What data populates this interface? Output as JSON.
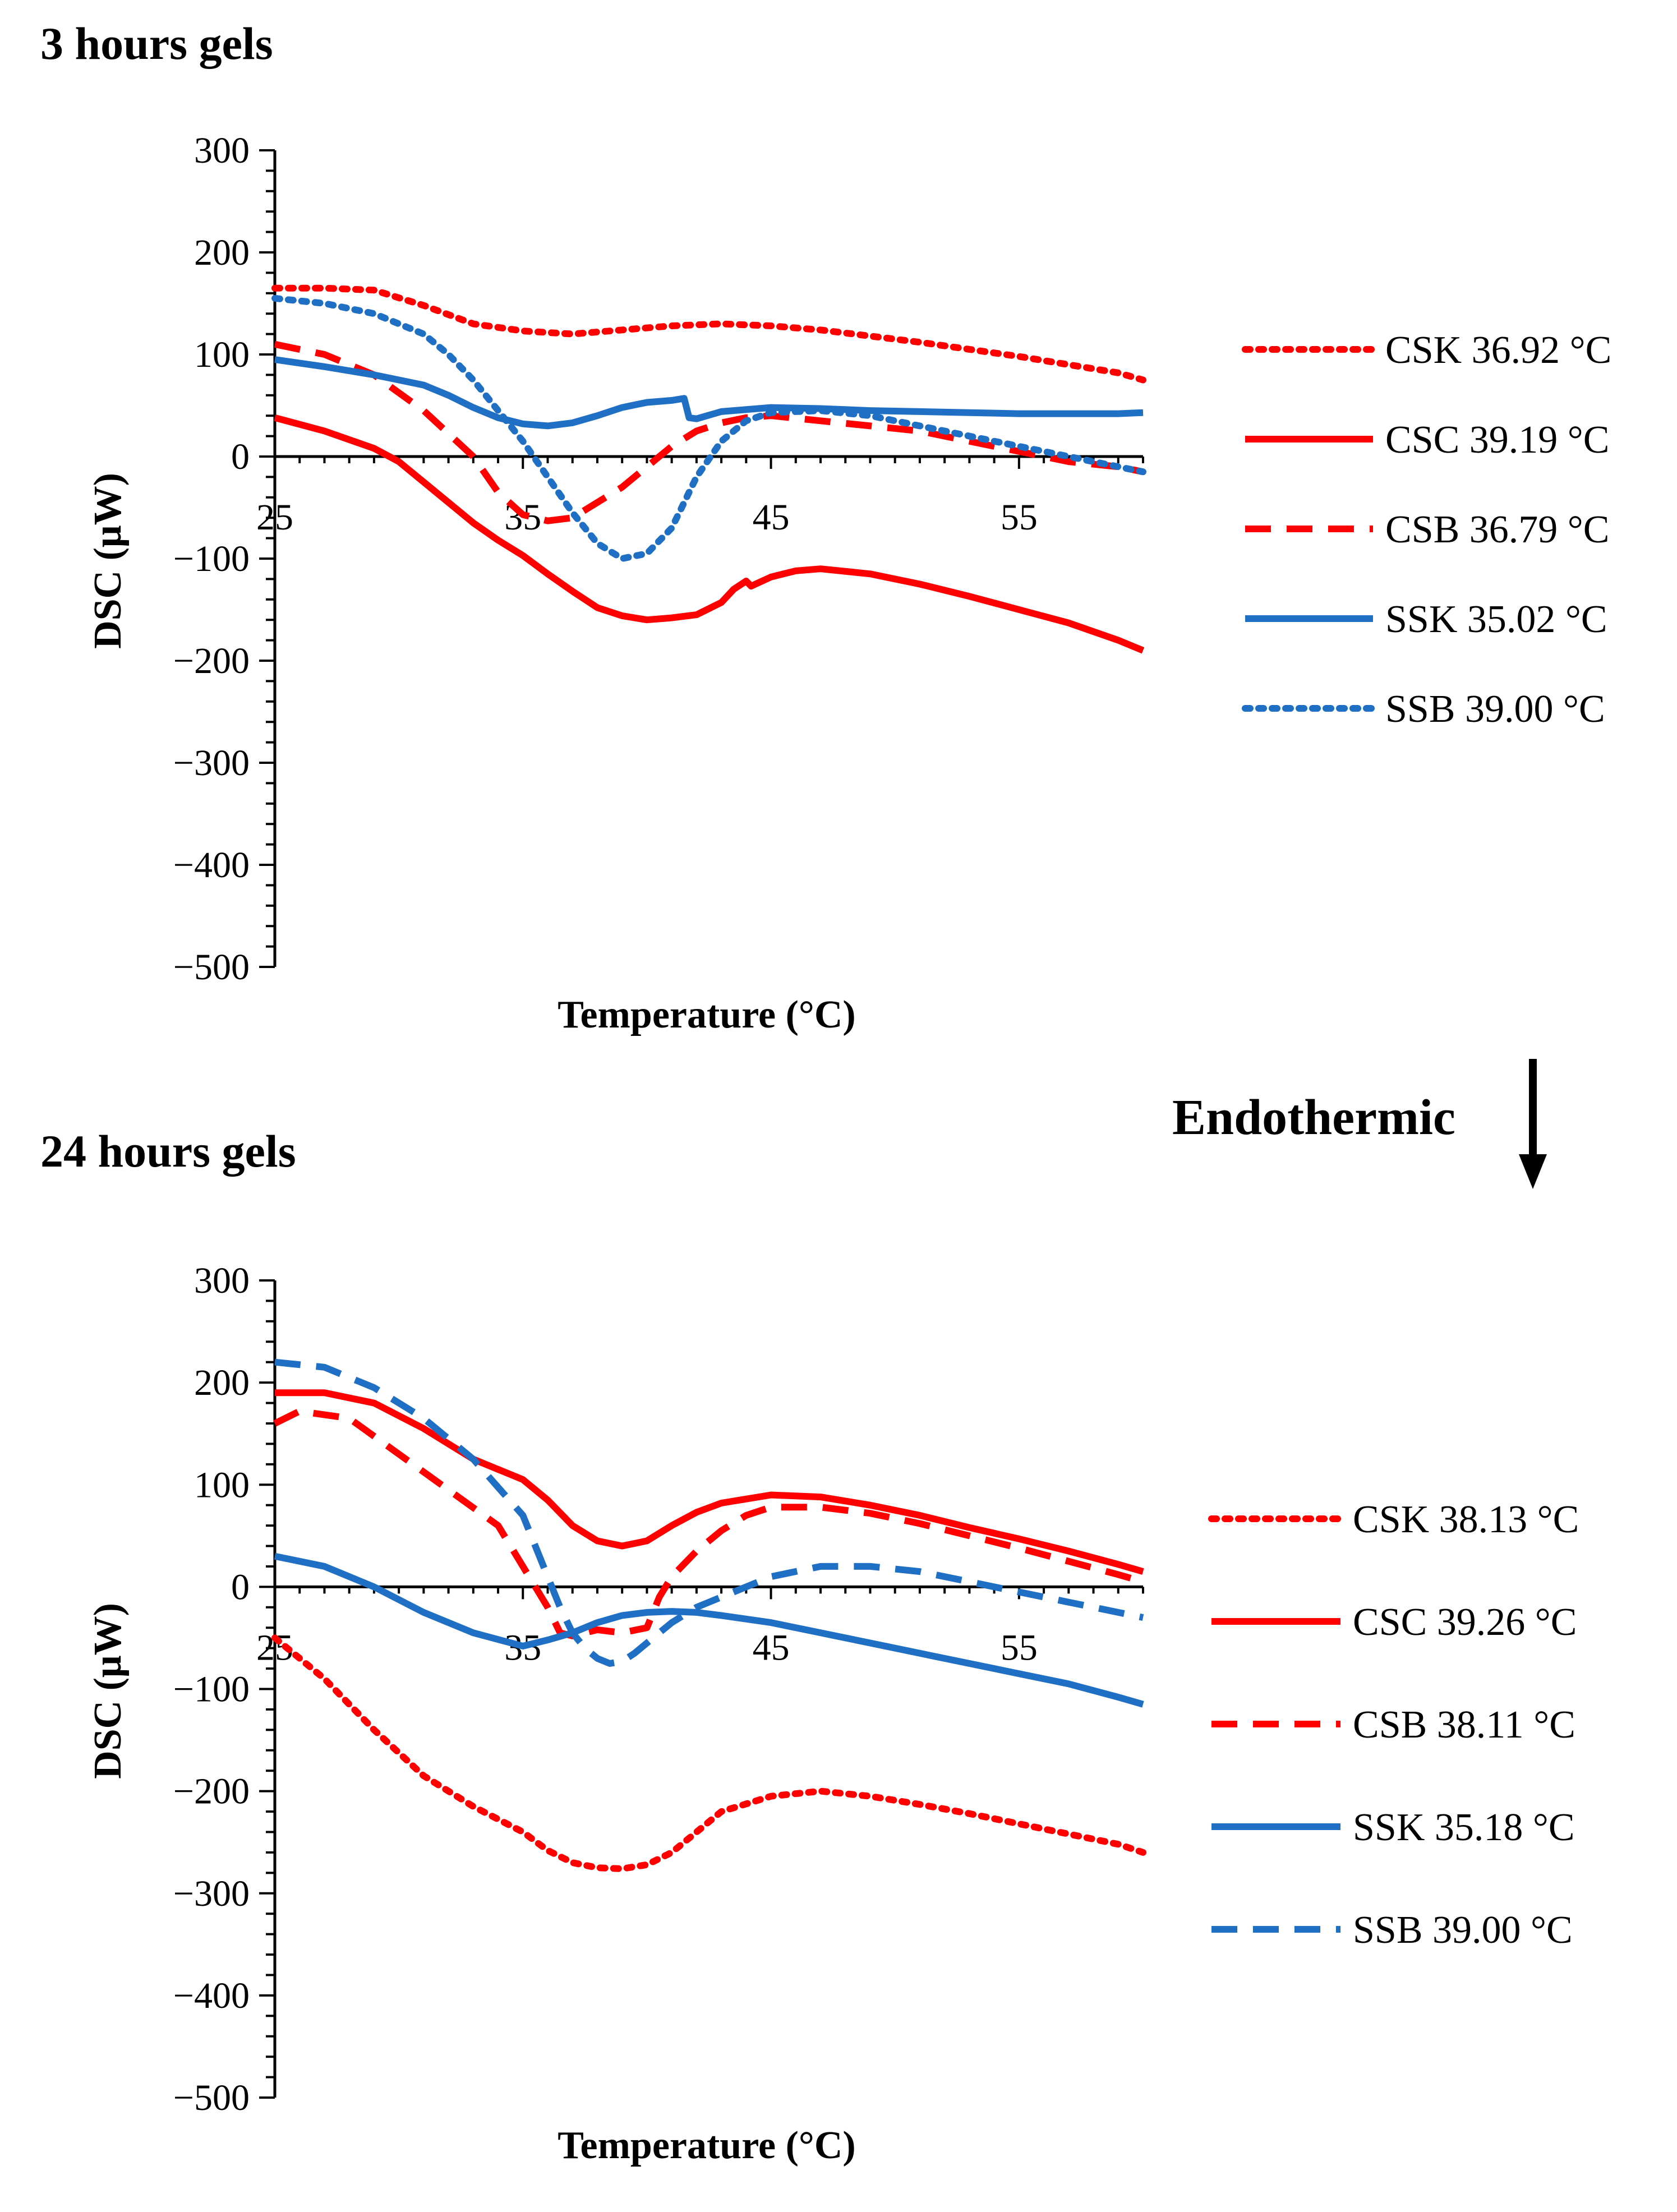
{
  "chart_data": [
    {
      "type": "line",
      "title": "3 hours gels",
      "xlabel": "Temperature (°C)",
      "ylabel": "DSC (μW)",
      "xlim": [
        25,
        60
      ],
      "ylim": [
        -500,
        300
      ],
      "xticks": [
        "25",
        "35",
        "45",
        "55"
      ],
      "yticks": [
        "300",
        "200",
        "100",
        "0",
        "−100",
        "−200",
        "−300",
        "−400",
        "−500"
      ],
      "legend_position": "right",
      "series": [
        {
          "name": "CSK 36.92 °C",
          "color": "#FF0000",
          "style": "dotted",
          "x": [
            25,
            27,
            29,
            31,
            33,
            35,
            37,
            39,
            41,
            43,
            45,
            47,
            49,
            51,
            53,
            55,
            57,
            59,
            60
          ],
          "y": [
            165,
            165,
            163,
            148,
            130,
            123,
            120,
            124,
            128,
            130,
            128,
            124,
            118,
            112,
            105,
            98,
            90,
            82,
            75
          ]
        },
        {
          "name": "CSC 39.19 °C",
          "color": "#FF0000",
          "style": "solid",
          "x": [
            25,
            27,
            29,
            30,
            31,
            32,
            33,
            34,
            35,
            36,
            37,
            38,
            39,
            40,
            41,
            42,
            43,
            43.5,
            44,
            44.2,
            45,
            46,
            47,
            49,
            51,
            53,
            55,
            57,
            59,
            60
          ],
          "y": [
            38,
            25,
            8,
            -5,
            -25,
            -45,
            -65,
            -82,
            -97,
            -115,
            -132,
            -148,
            -156,
            -160,
            -158,
            -155,
            -143,
            -130,
            -122,
            -127,
            -118,
            -112,
            -110,
            -115,
            -125,
            -137,
            -150,
            -163,
            -180,
            -190
          ]
        },
        {
          "name": "CSB 36.79 °C",
          "color": "#FF0000",
          "style": "dashed",
          "x": [
            25,
            27,
            29,
            31,
            33,
            34,
            35,
            36,
            37,
            38,
            39,
            40,
            41,
            42,
            43,
            44,
            45,
            47,
            49,
            51,
            53,
            55,
            57,
            59,
            60
          ],
          "y": [
            110,
            100,
            80,
            45,
            0,
            -35,
            -57,
            -63,
            -60,
            -45,
            -30,
            -10,
            10,
            25,
            33,
            38,
            40,
            35,
            30,
            25,
            15,
            5,
            -5,
            -10,
            -15
          ]
        },
        {
          "name": "SSK 35.02 °C",
          "color": "#1F6FC4",
          "style": "solid",
          "x": [
            25,
            27,
            29,
            31,
            32,
            33,
            34,
            35,
            36,
            37,
            38,
            39,
            40,
            41,
            41.5,
            41.7,
            42,
            43,
            45,
            47,
            49,
            51,
            53,
            55,
            57,
            59,
            60
          ],
          "y": [
            95,
            88,
            80,
            70,
            60,
            48,
            38,
            32,
            30,
            33,
            40,
            48,
            53,
            55,
            57,
            38,
            37,
            44,
            48,
            47,
            45,
            44,
            43,
            42,
            42,
            42,
            43
          ]
        },
        {
          "name": "SSB 39.00 °C",
          "color": "#1F6FC4",
          "style": "dotted",
          "x": [
            25,
            27,
            29,
            31,
            32,
            33,
            34,
            35,
            36,
            37,
            38,
            39,
            40,
            41,
            42,
            43,
            44,
            45,
            47,
            49,
            51,
            53,
            55,
            57,
            59,
            60
          ],
          "y": [
            155,
            150,
            140,
            120,
            100,
            75,
            45,
            15,
            -20,
            -55,
            -85,
            -100,
            -95,
            -70,
            -20,
            15,
            35,
            43,
            45,
            40,
            30,
            20,
            10,
            0,
            -10,
            -15
          ]
        }
      ]
    },
    {
      "type": "line",
      "title": "24 hours gels",
      "xlabel": "Temperature (°C)",
      "ylabel": "DSC (μW)",
      "xlim": [
        25,
        60
      ],
      "ylim": [
        -500,
        300
      ],
      "xticks": [
        "25",
        "35",
        "45",
        "55"
      ],
      "yticks": [
        "300",
        "200",
        "100",
        "0",
        "−100",
        "−200",
        "−300",
        "−400",
        "−500"
      ],
      "legend_position": "right",
      "series": [
        {
          "name": "CSK 38.13 °C",
          "color": "#FF0000",
          "style": "dotted",
          "x": [
            25,
            27,
            29,
            31,
            33,
            35,
            36,
            37,
            38,
            39,
            40,
            41,
            42,
            43,
            45,
            47,
            49,
            51,
            53,
            55,
            57,
            59,
            60
          ],
          "y": [
            -50,
            -90,
            -140,
            -185,
            -215,
            -240,
            -258,
            -270,
            -275,
            -276,
            -272,
            -260,
            -240,
            -220,
            -205,
            -200,
            -205,
            -213,
            -222,
            -232,
            -242,
            -252,
            -260
          ]
        },
        {
          "name": "CSC 39.26 °C",
          "color": "#FF0000",
          "style": "solid",
          "x": [
            25,
            27,
            29,
            31,
            33,
            35,
            36,
            37,
            38,
            39,
            40,
            41,
            42,
            43,
            45,
            47,
            49,
            51,
            53,
            55,
            57,
            59,
            60
          ],
          "y": [
            190,
            190,
            180,
            155,
            125,
            105,
            85,
            60,
            45,
            40,
            45,
            60,
            73,
            82,
            90,
            88,
            80,
            70,
            58,
            47,
            35,
            22,
            15
          ]
        },
        {
          "name": "CSB 38.11 °C",
          "color": "#FF0000",
          "style": "dashed",
          "x": [
            25,
            26,
            28,
            30,
            32,
            34,
            35,
            36,
            36.5,
            37,
            37.5,
            38,
            39,
            40,
            40.5,
            41,
            42,
            43,
            44,
            45,
            47,
            49,
            51,
            53,
            55,
            57,
            59,
            60
          ],
          "y": [
            160,
            172,
            165,
            130,
            95,
            60,
            20,
            -20,
            -45,
            -48,
            -45,
            -42,
            -45,
            -40,
            -10,
            10,
            35,
            55,
            70,
            78,
            78,
            72,
            62,
            50,
            38,
            25,
            12,
            5
          ]
        },
        {
          "name": "SSK 35.18 °C",
          "color": "#1F6FC4",
          "style": "solid",
          "x": [
            25,
            27,
            29,
            31,
            33,
            35,
            36,
            37,
            38,
            39,
            40,
            41,
            42,
            43,
            45,
            47,
            49,
            51,
            53,
            55,
            57,
            59,
            60
          ],
          "y": [
            30,
            20,
            0,
            -25,
            -45,
            -58,
            -52,
            -45,
            -35,
            -28,
            -25,
            -24,
            -25,
            -28,
            -35,
            -45,
            -55,
            -65,
            -75,
            -85,
            -95,
            -108,
            -115
          ]
        },
        {
          "name": "SSB 39.00 °C",
          "color": "#1F6FC4",
          "style": "dashed",
          "x": [
            25,
            27,
            29,
            31,
            33,
            35,
            35.5,
            36,
            36.5,
            37,
            37.5,
            38,
            38.5,
            39,
            39.5,
            40,
            41,
            42,
            43,
            44,
            45,
            47,
            49,
            51,
            53,
            55,
            57,
            59,
            60
          ],
          "y": [
            220,
            215,
            195,
            165,
            125,
            70,
            40,
            10,
            -20,
            -45,
            -60,
            -70,
            -75,
            -73,
            -65,
            -55,
            -35,
            -20,
            -10,
            0,
            10,
            20,
            20,
            15,
            5,
            -5,
            -15,
            -25,
            -30
          ]
        }
      ]
    }
  ],
  "annotation": {
    "label": "Endothermic",
    "direction": "down"
  }
}
